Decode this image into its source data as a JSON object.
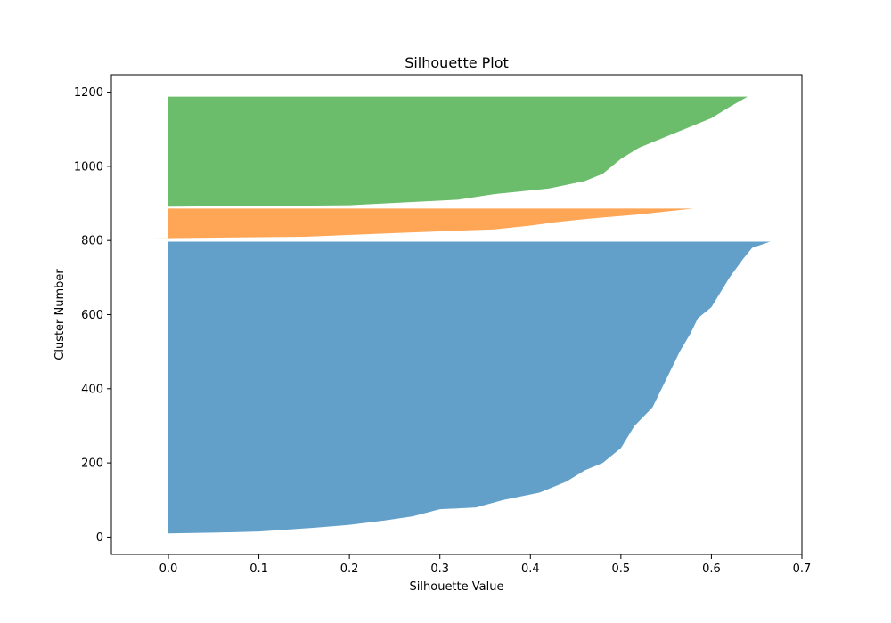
{
  "chart_data": {
    "type": "area",
    "title": "Silhouette Plot",
    "xlabel": "Silhouette Value",
    "ylabel": "Cluster Number",
    "xlim": [
      -0.063,
      0.7
    ],
    "ylim": [
      -47,
      1247
    ],
    "xticks": [
      0.0,
      0.1,
      0.2,
      0.3,
      0.4,
      0.5,
      0.6,
      0.7
    ],
    "xtick_labels": [
      "0.0",
      "0.1",
      "0.2",
      "0.3",
      "0.4",
      "0.5",
      "0.6",
      "0.7"
    ],
    "yticks": [
      0,
      200,
      400,
      600,
      800,
      1000,
      1200
    ],
    "ytick_labels": [
      "0",
      "200",
      "400",
      "600",
      "800",
      "1000",
      "1200"
    ],
    "grid": false,
    "series": [
      {
        "color": "#1f77b4",
        "y_range": [
          10,
          797
        ],
        "silhouette_profile": [
          [
            10,
            0.0
          ],
          [
            12,
            0.05
          ],
          [
            15,
            0.1
          ],
          [
            25,
            0.16
          ],
          [
            33,
            0.2
          ],
          [
            45,
            0.24
          ],
          [
            56,
            0.27
          ],
          [
            75,
            0.3
          ],
          [
            80,
            0.34
          ],
          [
            100,
            0.37
          ],
          [
            120,
            0.41
          ],
          [
            150,
            0.44
          ],
          [
            180,
            0.46
          ],
          [
            200,
            0.48
          ],
          [
            240,
            0.5
          ],
          [
            300,
            0.515
          ],
          [
            350,
            0.535
          ],
          [
            400,
            0.545
          ],
          [
            450,
            0.555
          ],
          [
            500,
            0.565
          ],
          [
            550,
            0.577
          ],
          [
            590,
            0.585
          ],
          [
            620,
            0.6
          ],
          [
            700,
            0.62
          ],
          [
            750,
            0.635
          ],
          [
            780,
            0.645
          ],
          [
            797,
            0.665
          ]
        ]
      },
      {
        "color": "#ff7f0e",
        "y_range": [
          806,
          886
        ],
        "silhouette_profile": [
          [
            806,
            -0.02
          ],
          [
            810,
            0.15
          ],
          [
            820,
            0.25
          ],
          [
            830,
            0.36
          ],
          [
            840,
            0.4
          ],
          [
            850,
            0.43
          ],
          [
            860,
            0.47
          ],
          [
            870,
            0.52
          ],
          [
            886,
            0.58
          ]
        ]
      },
      {
        "color": "#2ca02c",
        "y_range": [
          891,
          1188
        ],
        "silhouette_profile": [
          [
            891,
            0.0
          ],
          [
            895,
            0.2
          ],
          [
            910,
            0.32
          ],
          [
            925,
            0.36
          ],
          [
            940,
            0.42
          ],
          [
            960,
            0.46
          ],
          [
            980,
            0.48
          ],
          [
            1000,
            0.49
          ],
          [
            1020,
            0.5
          ],
          [
            1050,
            0.52
          ],
          [
            1080,
            0.55
          ],
          [
            1100,
            0.57
          ],
          [
            1130,
            0.6
          ],
          [
            1160,
            0.62
          ],
          [
            1188,
            0.64
          ]
        ]
      }
    ]
  }
}
